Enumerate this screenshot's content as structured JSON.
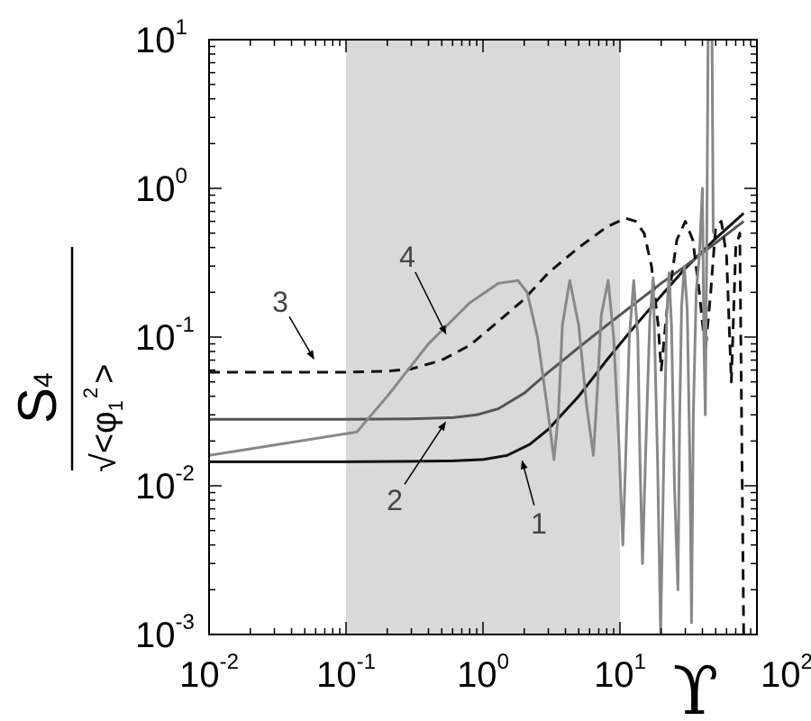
{
  "chart_data": {
    "type": "line",
    "x_scale": "log",
    "y_scale": "log",
    "xlim": [
      0.01,
      100
    ],
    "ylim": [
      0.001,
      10
    ],
    "grid": false,
    "xlabel": "ϒ",
    "ylabel": {
      "numerator": "S",
      "numerator_sub": "4",
      "denominator_prefix": "√<φ",
      "denominator_sub": "1",
      "denominator_sup": "2",
      "denominator_suffix": ">"
    },
    "x_ticks": [
      {
        "value": 0.01,
        "base": "10",
        "exp": "-2"
      },
      {
        "value": 0.1,
        "base": "10",
        "exp": "-1"
      },
      {
        "value": 1,
        "base": "10",
        "exp": "0"
      },
      {
        "value": 10,
        "base": "10",
        "exp": "1"
      },
      {
        "value": 100,
        "base": "10",
        "exp": "2"
      }
    ],
    "y_ticks": [
      {
        "value": 0.001,
        "base": "10",
        "exp": "-3"
      },
      {
        "value": 0.01,
        "base": "10",
        "exp": "-2"
      },
      {
        "value": 0.1,
        "base": "10",
        "exp": "-1"
      },
      {
        "value": 1,
        "base": "10",
        "exp": "0"
      },
      {
        "value": 10,
        "base": "10",
        "exp": "1"
      }
    ],
    "shaded_region": {
      "x_from": 0.1,
      "x_to": 10,
      "color": "#d9d9d9"
    },
    "series": [
      {
        "id": "1",
        "color": "#111111",
        "style": "solid",
        "x": [
          0.01,
          0.1,
          0.3,
          0.6,
          1,
          1.5,
          2.2,
          3,
          5,
          8,
          12,
          20,
          30,
          50,
          80
        ],
        "y": [
          0.0145,
          0.0145,
          0.0146,
          0.0147,
          0.015,
          0.016,
          0.019,
          0.024,
          0.04,
          0.07,
          0.11,
          0.19,
          0.29,
          0.46,
          0.68
        ]
      },
      {
        "id": "2",
        "color": "#555555",
        "style": "solid",
        "x": [
          0.01,
          0.1,
          0.3,
          0.6,
          0.9,
          1.3,
          2,
          3,
          5,
          8,
          12,
          20,
          30,
          50,
          80
        ],
        "y": [
          0.028,
          0.028,
          0.0282,
          0.0287,
          0.03,
          0.033,
          0.042,
          0.058,
          0.085,
          0.12,
          0.16,
          0.23,
          0.3,
          0.43,
          0.6
        ]
      },
      {
        "id": "3",
        "color": "#111111",
        "style": "dashed",
        "x": [
          0.01,
          0.05,
          0.1,
          0.2,
          0.3,
          0.5,
          0.8,
          1.2,
          2,
          3,
          5,
          8,
          11,
          13,
          15,
          17,
          19,
          20,
          22,
          26,
          30,
          34,
          38,
          42,
          46,
          50,
          55,
          60,
          65,
          70,
          75,
          80
        ],
        "y": [
          0.058,
          0.058,
          0.058,
          0.059,
          0.061,
          0.07,
          0.088,
          0.12,
          0.18,
          0.27,
          0.4,
          0.55,
          0.63,
          0.6,
          0.5,
          0.3,
          0.12,
          0.06,
          0.15,
          0.45,
          0.6,
          0.45,
          0.2,
          0.08,
          0.2,
          0.55,
          0.6,
          0.35,
          0.05,
          0.4,
          0.5,
          0.001
        ]
      },
      {
        "id": "4",
        "color": "#888888",
        "style": "solid",
        "x": [
          0.01,
          0.12,
          0.2,
          0.4,
          0.8,
          1.3,
          1.8,
          2.1,
          2.5,
          3.0,
          3.3,
          3.55,
          3.8,
          4.3,
          5.0,
          5.7,
          6.4,
          6.8,
          7.3,
          8.2,
          9.0,
          9.8,
          10.5,
          11,
          11.7,
          12.6,
          13.5,
          14,
          14.6,
          15.5,
          16.5,
          17.5,
          18,
          18.8,
          19.8,
          21,
          22,
          22.8,
          23.8,
          25,
          26.5,
          27.3,
          28.2,
          29.5,
          31,
          32.5,
          33.3,
          34.3,
          36,
          38,
          40,
          41,
          42,
          43,
          44,
          45,
          47,
          48
        ],
        "y": [
          0.016,
          0.023,
          0.04,
          0.09,
          0.17,
          0.23,
          0.24,
          0.2,
          0.1,
          0.03,
          0.015,
          0.03,
          0.12,
          0.24,
          0.12,
          0.035,
          0.016,
          0.04,
          0.14,
          0.24,
          0.1,
          0.02,
          0.004,
          0.015,
          0.1,
          0.24,
          0.1,
          0.015,
          0.003,
          0.02,
          0.13,
          0.25,
          0.08,
          0.015,
          0.001,
          0.02,
          0.14,
          0.27,
          0.12,
          0.01,
          0.002,
          0.03,
          0.16,
          0.3,
          0.15,
          0.012,
          0.0012,
          0.03,
          0.2,
          0.35,
          1.0,
          0.1,
          0.03,
          0.4,
          10,
          10,
          10,
          0.5
        ]
      }
    ],
    "annotations": [
      {
        "text": "1",
        "tx": 598,
        "ty": 592,
        "ax": 1.9,
        "ay": 0.0155
      },
      {
        "text": "2",
        "tx": 438,
        "ty": 566,
        "ax": 0.55,
        "ay": 0.028
      },
      {
        "text": "3",
        "tx": 311,
        "ty": 346,
        "ax": 0.06,
        "ay": 0.068
      },
      {
        "text": "4",
        "tx": 452,
        "ty": 296,
        "ax": 0.55,
        "ay": 0.1
      }
    ]
  }
}
